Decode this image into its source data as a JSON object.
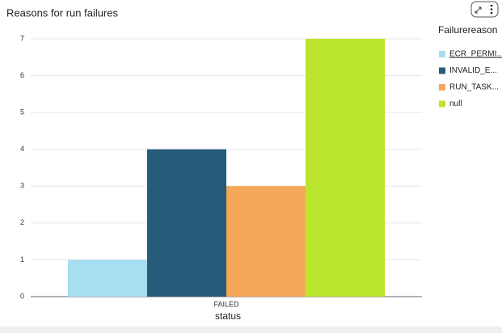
{
  "chart_data": {
    "type": "bar",
    "title": "Reasons for run failures",
    "x_label": "status",
    "legend_title": "Failurereason",
    "categories": [
      "FAILED"
    ],
    "series": [
      {
        "name": "ECR_PERMI...",
        "color": "#a6def2",
        "values": [
          1
        ]
      },
      {
        "name": "INVALID_E...",
        "color": "#265c7a",
        "values": [
          4
        ]
      },
      {
        "name": "RUN_TASK...",
        "color": "#f5a85a",
        "values": [
          3
        ]
      },
      {
        "name": "null",
        "color": "#bce62e",
        "values": [
          7
        ]
      }
    ],
    "ylim": [
      0,
      7
    ],
    "yticks": [
      0,
      1,
      2,
      3,
      4,
      5,
      6,
      7
    ],
    "grid": true,
    "legend": "right"
  }
}
